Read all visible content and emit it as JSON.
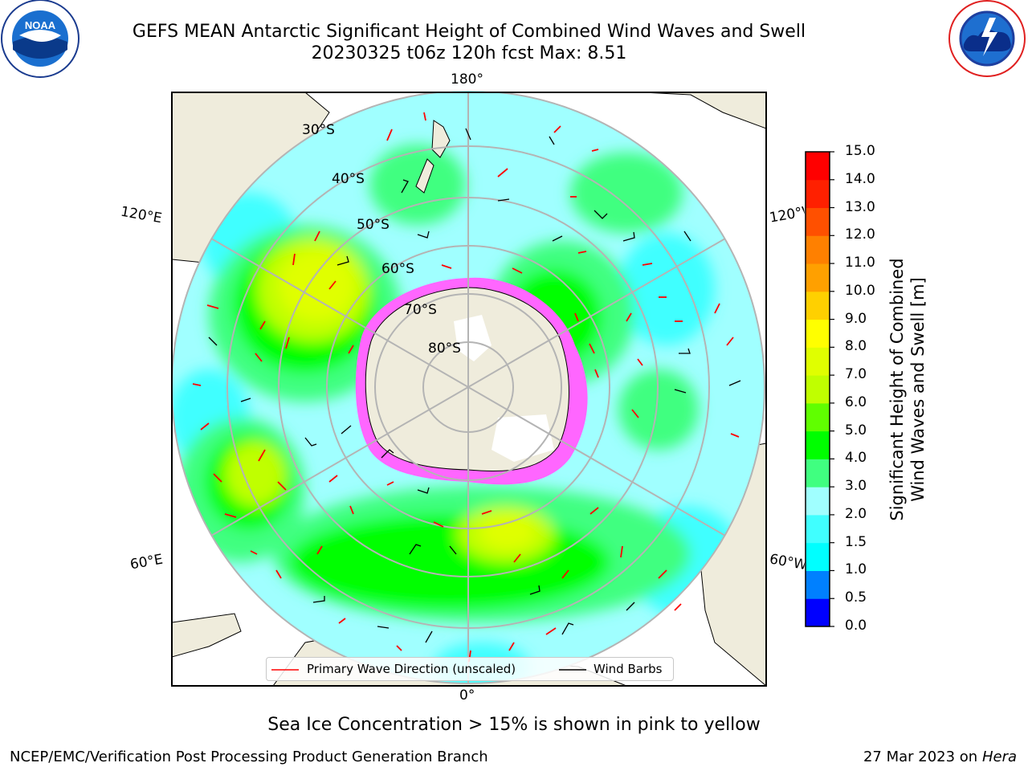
{
  "header": {
    "title_line1": "GEFS MEAN Antarctic Significant Height of Combined Wind Waves and Swell",
    "title_line2": "20230325 t06z 120h fcst   Max: 8.51"
  },
  "logos": {
    "noaa_text": "NOAA",
    "noaa_ring": "NATIONAL OCEANIC AND ATMOSPHERIC ADMINISTRATION · U.S. DEPARTMENT OF COMMERCE",
    "nws_ring": "NATIONAL WEATHER SERVICE"
  },
  "map": {
    "lon_labels": {
      "top": "180°",
      "bottom": "0°",
      "left_upper": "120°E",
      "left_lower": "60°E",
      "right_upper": "120°W",
      "right_lower": "60°W"
    },
    "lat_labels": [
      "30°S",
      "40°S",
      "50°S",
      "60°S",
      "70°S",
      "80°S"
    ],
    "colors": {
      "land": "#efecdc",
      "ice": "#ff66ff",
      "wave_arrow": "#ff0000",
      "barb": "#000000",
      "grid": "#b4b4b4"
    }
  },
  "colorbar": {
    "title_line1": "Significant Height of Combined",
    "title_line2": "Wind Waves and Swell [m]",
    "ticks": [
      "0.0",
      "0.5",
      "1.0",
      "1.5",
      "2.0",
      "3.0",
      "4.0",
      "5.0",
      "6.0",
      "7.0",
      "8.0",
      "9.0",
      "10.0",
      "11.0",
      "12.0",
      "13.0",
      "14.0",
      "15.0"
    ],
    "colors": [
      "#0000ff",
      "#0080ff",
      "#00ffff",
      "#40ffff",
      "#a0ffff",
      "#40ff80",
      "#00ff00",
      "#60ff00",
      "#c0ff00",
      "#e0ff00",
      "#ffff00",
      "#ffd000",
      "#ffa000",
      "#ff8000",
      "#ff5000",
      "#ff2000",
      "#ff0000"
    ]
  },
  "legend": {
    "primary_wave_label": "Primary Wave Direction (unscaled)",
    "wind_barbs_label": "Wind Barbs"
  },
  "caption": "Sea Ice Concentration > 15% is shown in pink to yellow",
  "footer": {
    "credit": "NCEP/EMC/Verification Post Processing Product Generation Branch",
    "date": "27 Mar 2023 on",
    "system": "Hera"
  }
}
